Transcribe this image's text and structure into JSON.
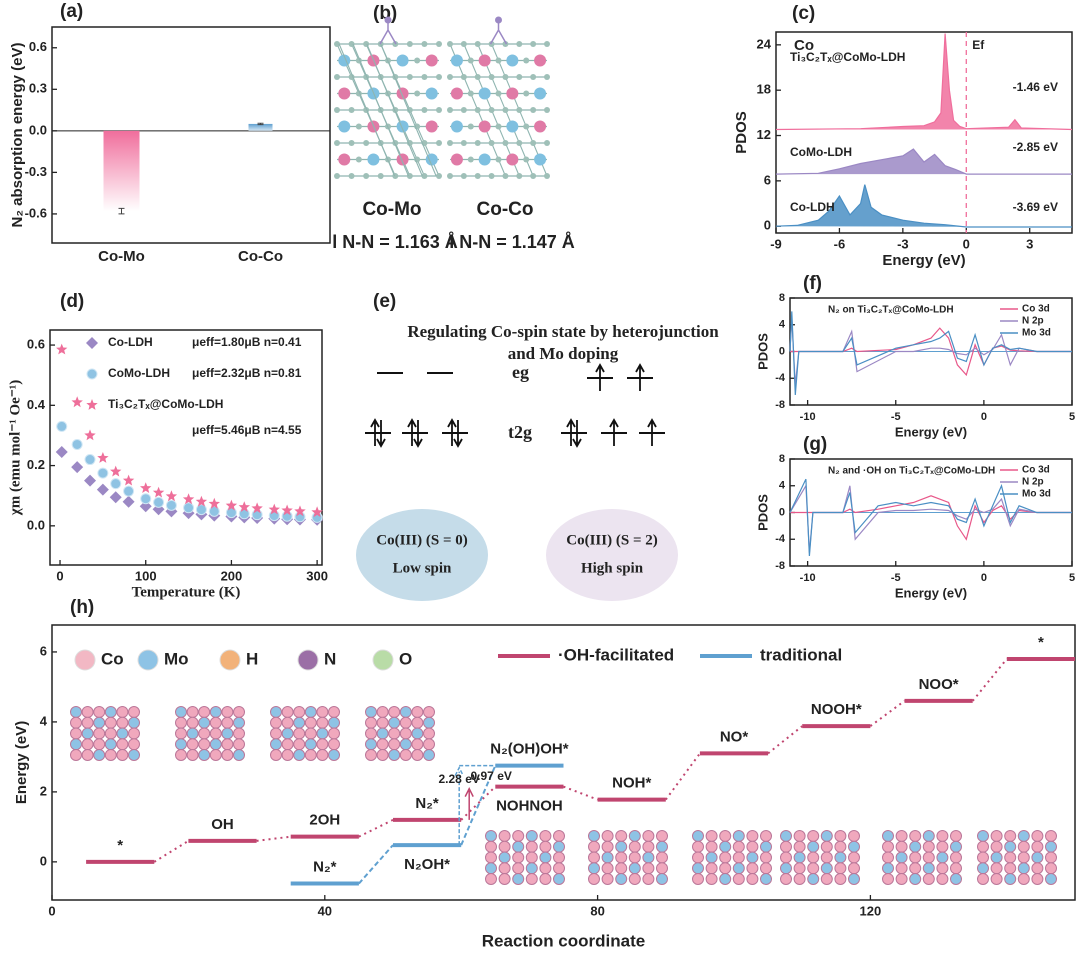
{
  "chart_data": [
    {
      "type": "bar",
      "panel_label": "(a)",
      "ylabel": "N₂ absorption energy (eV)",
      "categories": [
        "Co-Mo",
        "Co-Co"
      ],
      "values": [
        -0.58,
        0.05
      ],
      "errors": [
        0.02,
        0.005
      ],
      "colors": [
        "#f06e9c",
        "#5fa0d0"
      ],
      "ylim": [
        -0.81,
        0.75
      ],
      "yticks": [
        0.6,
        0.3,
        {
          "value": 0,
          "label": "0.0"
        },
        -0.3,
        -0.6
      ]
    },
    {
      "type": "line",
      "panel_label": "(c)",
      "title": "Co",
      "xlabel": "Energy (eV)",
      "ylabel": "PDOS",
      "fermi_label": "Ef",
      "xlim": [
        -9,
        5
      ],
      "xticks": [
        -9,
        -6,
        -3,
        0,
        3
      ],
      "ylim": [
        -0.9,
        25.7
      ],
      "yticks": [
        0,
        6,
        12,
        18,
        24
      ],
      "annotations": [
        "-1.46 eV",
        "-2.85 eV",
        "-3.69 eV"
      ],
      "series": [
        {
          "name": "Ti₃C₂Tₓ@CoMo-LDH",
          "color": "#f06e9c",
          "x": [
            -9,
            -5,
            -3,
            -2,
            -1.5,
            -1.2,
            -1,
            -0.8,
            -0.6,
            -0.3,
            0,
            2,
            2.3,
            2.6,
            5
          ],
          "values": [
            12.8,
            12.9,
            13.2,
            13.3,
            13.8,
            15,
            25.5,
            18,
            14,
            13.2,
            12.9,
            13.1,
            14.1,
            13,
            12.8
          ]
        },
        {
          "name": "CoMo-LDH",
          "color": "#9b88c4",
          "x": [
            -9,
            -7,
            -6,
            -5,
            -4,
            -3,
            -2.5,
            -2,
            -1.5,
            -1,
            -0.5,
            0,
            3,
            5
          ],
          "values": [
            6.9,
            7,
            7.6,
            8.3,
            8.8,
            9.3,
            10.2,
            8.5,
            9.5,
            8,
            7.5,
            6.9,
            6.9,
            6.9
          ]
        },
        {
          "name": "Co-LDH",
          "color": "#4a8fc4",
          "x": [
            -9,
            -8,
            -7,
            -6.5,
            -6,
            -5.5,
            -5,
            -4.8,
            -4.5,
            -4,
            -3,
            -2,
            -1,
            0,
            3,
            5
          ],
          "values": [
            0,
            0.1,
            0.8,
            2,
            4,
            1.5,
            3,
            5.5,
            2.5,
            1.5,
            0.8,
            0.4,
            0.2,
            -0.1,
            -0.1,
            -0.1
          ]
        }
      ]
    },
    {
      "type": "scatter",
      "panel_label": "(d)",
      "xlabel": "Temperature (K)",
      "ylabel": "χm (emu mol⁻¹ Oe⁻¹)",
      "xlim": [
        -11.7,
        305.7
      ],
      "xticks": [
        0,
        100,
        200,
        300
      ],
      "ylim": [
        -0.13,
        0.65
      ],
      "yticks": [
        {
          "value": 0,
          "label": "0.0"
        },
        0.2,
        0.4,
        0.6
      ],
      "x": [
        2,
        20,
        35,
        50,
        65,
        80,
        100,
        115,
        130,
        150,
        165,
        180,
        200,
        215,
        230,
        250,
        265,
        280,
        300
      ],
      "series": [
        {
          "name": "Co-LDH",
          "annotation": "μeff=1.80μB  n=0.41",
          "color": "#9b88c4",
          "marker": "diamond",
          "values": [
            0.245,
            0.195,
            0.15,
            0.12,
            0.095,
            0.08,
            0.065,
            0.055,
            0.048,
            0.042,
            0.038,
            0.034,
            0.031,
            0.028,
            0.026,
            0.024,
            0.022,
            0.021,
            0.02
          ]
        },
        {
          "name": "CoMo-LDH",
          "annotation": "μeff=2.32μB  n=0.81",
          "color": "#8fc3e3",
          "marker": "circle",
          "values": [
            0.33,
            0.27,
            0.22,
            0.175,
            0.14,
            0.115,
            0.09,
            0.078,
            0.068,
            0.06,
            0.054,
            0.048,
            0.044,
            0.04,
            0.037,
            0.034,
            0.032,
            0.03,
            0.028
          ]
        },
        {
          "name": "Ti₃C₂Tₓ@CoMo-LDH",
          "annotation": "μeff=5.46μB  n=4.55",
          "color": "#ee6f9a",
          "marker": "star",
          "values": [
            0.585,
            0.41,
            0.3,
            0.225,
            0.18,
            0.15,
            0.125,
            0.11,
            0.098,
            0.088,
            0.08,
            0.073,
            0.067,
            0.062,
            0.058,
            0.054,
            0.051,
            0.048,
            0.045
          ]
        }
      ]
    },
    {
      "type": "line",
      "panel_label": "(f)",
      "title": "N₂ on Ti₃C₂Tₓ@CoMo-LDH",
      "xlabel": "Energy (eV)",
      "ylabel": "PDOS",
      "xlim": [
        -11,
        5
      ],
      "xticks": [
        -10,
        -5,
        0,
        5
      ],
      "ylim": [
        -8,
        8
      ],
      "yticks": [
        8,
        4,
        0,
        -4,
        -8
      ],
      "legend": "upper right",
      "series": [
        {
          "name": "Co 3d",
          "color": "#e8588a",
          "x": [
            -11,
            -10.9,
            -10.7,
            -10.5,
            -8,
            -7.5,
            -7.2,
            -5,
            -4,
            -3,
            -2.5,
            -2,
            -1.5,
            -1,
            -0.5,
            0,
            0.5,
            1,
            1.5,
            2,
            3,
            5
          ],
          "values": [
            0,
            0,
            0,
            0,
            0,
            0.5,
            0,
            0.3,
            1,
            2,
            3.5,
            2,
            -2,
            -3.5,
            1,
            -2,
            0.5,
            0.8,
            0.2,
            0.1,
            0,
            0
          ]
        },
        {
          "name": "N 2p",
          "color": "#9b88c4",
          "x": [
            -11,
            -10.9,
            -10.7,
            -10.5,
            -8,
            -7.5,
            -7.2,
            -5,
            -4,
            -3,
            -2.5,
            -2,
            -1.5,
            -1,
            -0.5,
            0,
            0.5,
            1,
            1.5,
            2,
            3,
            5
          ],
          "values": [
            0,
            5,
            -5,
            0,
            0,
            3,
            -3,
            0,
            0,
            0.5,
            0.5,
            0.3,
            -0.3,
            -0.5,
            0.5,
            -0.5,
            0.3,
            2.5,
            -2,
            0.5,
            0,
            0
          ]
        },
        {
          "name": "Mo 3d",
          "color": "#4a8fc4",
          "x": [
            -11,
            -10.9,
            -10.7,
            -10.5,
            -8,
            -7.5,
            -7.2,
            -5,
            -4,
            -3,
            -2.5,
            -2,
            -1.5,
            -1,
            -0.5,
            0,
            0.5,
            1,
            1.5,
            2,
            3,
            5
          ],
          "values": [
            0,
            6,
            -6.5,
            0,
            0,
            2,
            -2,
            0.5,
            1,
            1.5,
            2,
            3,
            -1,
            -1.5,
            2.5,
            -2,
            0.5,
            1,
            0.3,
            0.5,
            0,
            0
          ]
        }
      ]
    },
    {
      "type": "line",
      "panel_label": "(g)",
      "title": "N₂ and ·OH on Ti₃C₂Tₓ@CoMo-LDH",
      "xlabel": "Energy (eV)",
      "ylabel": "PDOS",
      "xlim": [
        -11,
        5
      ],
      "xticks": [
        -10,
        -5,
        0,
        5
      ],
      "ylim": [
        -8,
        8
      ],
      "yticks": [
        8,
        4,
        0,
        -4,
        -8
      ],
      "legend": "upper right",
      "series": [
        {
          "name": "Co 3d",
          "color": "#e8588a",
          "x": [
            -11,
            -10.1,
            -9.9,
            -9.7,
            -8,
            -7.6,
            -7.3,
            -6,
            -5,
            -4,
            -3,
            -2,
            -1.5,
            -1,
            -0.5,
            0,
            0.5,
            1,
            1.5,
            2,
            3,
            5
          ],
          "values": [
            0,
            0,
            0,
            0,
            0,
            0.5,
            0,
            0.5,
            1,
            1.5,
            2.5,
            1.5,
            -2,
            -4,
            1,
            -1.5,
            0.3,
            1,
            -1,
            0.3,
            0,
            0
          ]
        },
        {
          "name": "N 2p",
          "color": "#9b88c4",
          "x": [
            -11,
            -10.1,
            -9.9,
            -9.7,
            -8,
            -7.6,
            -7.3,
            -6,
            -5,
            -4,
            -3,
            -2,
            -1.5,
            -1,
            -0.5,
            0,
            0.5,
            1,
            1.5,
            2,
            3,
            5
          ],
          "values": [
            0,
            4,
            -6,
            0,
            0,
            4,
            -4,
            0,
            0.3,
            0.3,
            0.5,
            0.3,
            -0.5,
            -1,
            0.5,
            0,
            0.5,
            2,
            -2,
            0.5,
            0,
            0
          ]
        },
        {
          "name": "Mo 3d",
          "color": "#4a8fc4",
          "x": [
            -11,
            -10.1,
            -9.9,
            -9.7,
            -8,
            -7.6,
            -7.3,
            -6,
            -5,
            -4,
            -3,
            -2,
            -1.5,
            -1,
            -0.5,
            0,
            0.5,
            1,
            1.5,
            2,
            3,
            5
          ],
          "values": [
            0,
            5,
            -6.5,
            0,
            0,
            3,
            -3,
            1,
            1.5,
            1,
            1.5,
            1,
            -1,
            -1.5,
            2,
            -2,
            1,
            4,
            -1.5,
            1,
            0,
            0
          ]
        }
      ]
    },
    {
      "type": "energy_diagram",
      "panel_label": "(h)",
      "xlabel": "Reaction coordinate",
      "ylabel": "Energy (eV)",
      "xlim": [
        0,
        150
      ],
      "xticks": [
        0,
        40,
        80,
        120
      ],
      "ylim": [
        -1.09,
        6.77
      ],
      "yticks": [
        0,
        2,
        4,
        6
      ],
      "annotations": [
        "2.28 eV",
        "0.97 eV"
      ],
      "atoms": [
        {
          "name": "Co",
          "color": "#f2b8c4"
        },
        {
          "name": "Mo",
          "color": "#8ec3e5"
        },
        {
          "name": "H",
          "color": "#f2b27a"
        },
        {
          "name": "N",
          "color": "#9b6fa6"
        },
        {
          "name": "O",
          "color": "#b9dca7"
        }
      ],
      "series": [
        {
          "name": "·OH-facilitated",
          "color": "#c0456f",
          "x_start": [
            5,
            20,
            35,
            50,
            65,
            80,
            95,
            110,
            125,
            140
          ],
          "x_end": [
            15,
            30,
            45,
            60,
            75,
            90,
            105,
            120,
            135,
            150
          ],
          "values": [
            0,
            0.6,
            0.72,
            1.2,
            2.15,
            1.78,
            3.1,
            3.88,
            4.6,
            5.8
          ],
          "labels": [
            "*",
            "OH",
            "2OH",
            "N₂*",
            "NOHNOH",
            "NOH*",
            "NO*",
            "NOOH*",
            "NOO*",
            "*"
          ]
        },
        {
          "name": "traditional",
          "color": "#5fa0d0",
          "x_start": [
            35,
            50,
            65
          ],
          "x_end": [
            45,
            60,
            75
          ],
          "values": [
            -0.62,
            0.48,
            2.75
          ],
          "labels": [
            "N₂*",
            "N₂OH*",
            "N₂(OH)OH*"
          ]
        }
      ]
    }
  ],
  "panel_b": {
    "panel_label": "(b)",
    "structures": [
      {
        "name": "Co-Mo",
        "bond": "l N-N = 1.163 Å"
      },
      {
        "name": "Co-Co",
        "bond": "l N-N = 1.147 Å"
      }
    ]
  },
  "panel_e": {
    "panel_label": "(e)",
    "title_lines": [
      "Regulating Co-spin state by heterojunction",
      "and Mo doping"
    ],
    "eg": "eg",
    "t2g": "t2g",
    "states": [
      {
        "ion": "Co(III)  (S = 0)",
        "spin": "Low spin"
      },
      {
        "ion": "Co(III)  (S = 2)",
        "spin": "High spin"
      }
    ]
  }
}
